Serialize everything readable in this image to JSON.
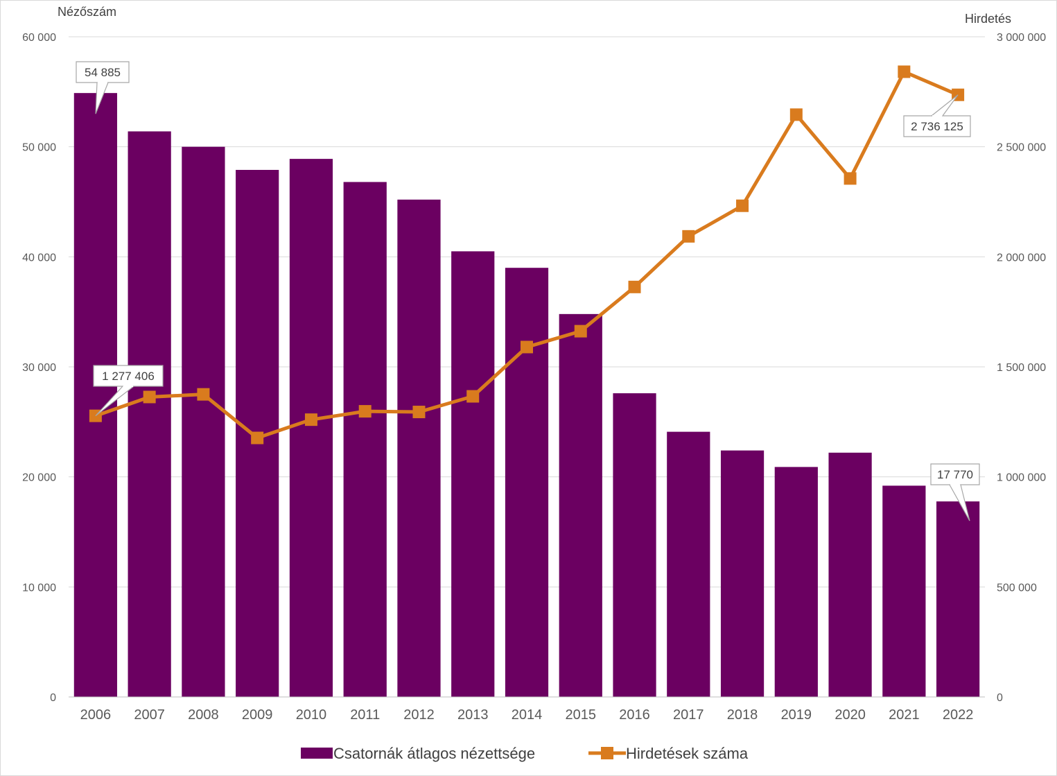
{
  "chart_data": {
    "type": "bar",
    "combo": "bar+line, dual y-axis",
    "categories": [
      "2006",
      "2007",
      "2008",
      "2009",
      "2010",
      "2011",
      "2012",
      "2013",
      "2014",
      "2015",
      "2016",
      "2017",
      "2018",
      "2019",
      "2020",
      "2021",
      "2022"
    ],
    "series": [
      {
        "name": "Csatornák átlagos nézettsége",
        "type": "bar",
        "axis": "left",
        "color": "#6b0061",
        "values": [
          54885,
          51400,
          50000,
          47900,
          48900,
          46800,
          45200,
          40500,
          39000,
          34800,
          27600,
          24100,
          22400,
          20900,
          22200,
          19200,
          17770
        ]
      },
      {
        "name": "Hirdetések száma",
        "type": "line",
        "marker": "square",
        "axis": "right",
        "color": "#d97b1e",
        "values": [
          1277406,
          1363000,
          1375000,
          1177000,
          1260000,
          1298000,
          1295000,
          1366000,
          1590000,
          1662000,
          1863000,
          2093000,
          2232000,
          2646000,
          2356000,
          2841000,
          2736125
        ]
      }
    ],
    "ylabel_left": "Nézőszám",
    "ylabel_right": "Hirdetés",
    "ylim_left": [
      0,
      60000
    ],
    "ylim_right": [
      0,
      3000000
    ],
    "yticks_left": [
      "0",
      "10 000",
      "20 000",
      "30 000",
      "40 000",
      "50 000",
      "60 000"
    ],
    "yticks_right": [
      "0",
      "500 000",
      "1 000 000",
      "1 500 000",
      "2 000 000",
      "2 500 000",
      "3 000 000"
    ],
    "grid": "horizontal",
    "legend_position": "bottom",
    "annotations": [
      {
        "series": 0,
        "index": 0,
        "text": "54 885"
      },
      {
        "series": 0,
        "index": 16,
        "text": "17 770"
      },
      {
        "series": 1,
        "index": 0,
        "text": "1 277 406"
      },
      {
        "series": 1,
        "index": 16,
        "text": "2 736 125"
      }
    ]
  }
}
